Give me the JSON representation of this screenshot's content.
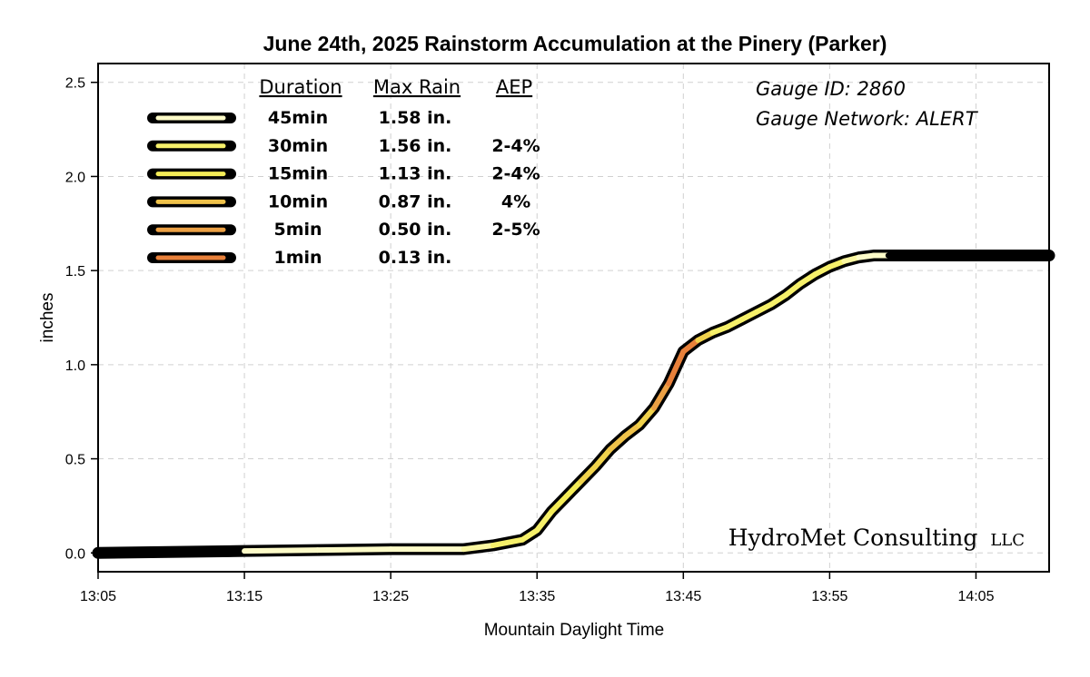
{
  "chart_data": {
    "type": "line",
    "title": "June 24th, 2025 Rainstorm Accumulation at the Pinery (Parker)",
    "xlabel": "Mountain Daylight Time",
    "ylabel": "inches",
    "x_ticks": [
      "13:05",
      "13:15",
      "13:25",
      "13:35",
      "13:45",
      "13:55",
      "14:05"
    ],
    "y_ticks": [
      "0.0",
      "0.5",
      "1.0",
      "1.5",
      "2.0",
      "2.5"
    ],
    "xlim": [
      "13:05",
      "14:10"
    ],
    "ylim": [
      -0.1,
      2.6
    ],
    "grid": true,
    "series": [
      {
        "x": [
          "13:05",
          "13:15",
          "13:20",
          "13:25",
          "13:30",
          "13:32",
          "13:34",
          "13:35",
          "13:36",
          "13:37",
          "13:38",
          "13:39",
          "13:40",
          "13:41",
          "13:42",
          "13:43",
          "13:44",
          "13:45",
          "13:46",
          "13:47",
          "13:48",
          "13:49",
          "13:50",
          "13:51",
          "13:52",
          "13:53",
          "13:54",
          "13:55",
          "13:56",
          "13:57",
          "13:58",
          "13:59",
          "14:00",
          "14:01",
          "14:05",
          "14:10"
        ],
        "values": [
          0.0,
          0.01,
          0.015,
          0.02,
          0.02,
          0.04,
          0.07,
          0.12,
          0.22,
          0.3,
          0.38,
          0.46,
          0.55,
          0.62,
          0.68,
          0.77,
          0.9,
          1.07,
          1.13,
          1.17,
          1.2,
          1.24,
          1.28,
          1.32,
          1.37,
          1.43,
          1.48,
          1.52,
          1.55,
          1.57,
          1.58,
          1.58,
          1.58,
          1.58,
          1.58,
          1.58
        ],
        "intensity_color": [
          "#000000",
          "#fdfbc8",
          "#fdfbc8",
          "#fdfbc8",
          "#fbf7a1",
          "#f6f06a",
          "#f6f06a",
          "#f6f06a",
          "#f4ec57",
          "#f4ec57",
          "#f0d24c",
          "#f0d24c",
          "#efc24a",
          "#efc24a",
          "#f0d24c",
          "#eca044",
          "#e8803a",
          "#e8803a",
          "#f0d24c",
          "#f6f06a",
          "#f6f06a",
          "#f6f06a",
          "#f6f06a",
          "#f6f06a",
          "#f6f06a",
          "#f6f06a",
          "#f6f06a",
          "#f6f06a",
          "#fbf7a1",
          "#fdfbc8",
          "#fdfbc8",
          "#000000",
          "#000000",
          "#000000",
          "#000000",
          "#000000"
        ]
      }
    ]
  },
  "legend": {
    "headers": {
      "duration": "Duration",
      "max_rain": "Max Rain",
      "aep": "AEP"
    },
    "rows": [
      {
        "duration": "45min",
        "max_rain": "1.58 in.",
        "aep": "",
        "color": "#fdfbc8"
      },
      {
        "duration": "30min",
        "max_rain": "1.56 in.",
        "aep": "2-4%",
        "color": "#f6f06a"
      },
      {
        "duration": "15min",
        "max_rain": "1.13 in.",
        "aep": "2-4%",
        "color": "#f4ec57"
      },
      {
        "duration": "10min",
        "max_rain": "0.87 in.",
        "aep": "4%",
        "color": "#efc24a"
      },
      {
        "duration": "5min",
        "max_rain": "0.50 in.",
        "aep": "2-5%",
        "color": "#eca044"
      },
      {
        "duration": "1min",
        "max_rain": "0.13 in.",
        "aep": "",
        "color": "#e8803a"
      }
    ]
  },
  "gauge": {
    "id_text": "Gauge ID: 2860",
    "network_text": "Gauge Network: ALERT"
  },
  "watermark": {
    "name": "HydroMet Consulting",
    "suffix": "LLC"
  }
}
